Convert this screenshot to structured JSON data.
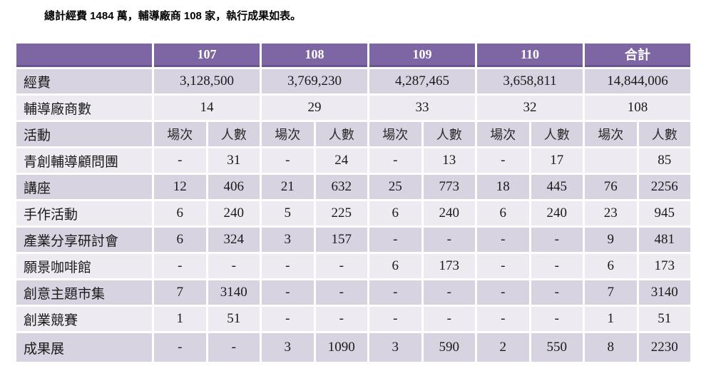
{
  "caption": "總計經費 1484 萬，輔導廠商 108 家，執行成果如表。",
  "colors": {
    "header_bg": "#7d66a3",
    "header_border": "#6a5590",
    "header_text": "#ffffff",
    "band_dark": "#d8d3e0",
    "band_light": "#edeaf1",
    "body_text": "#1a1a1a",
    "page_bg": "#ffffff"
  },
  "table": {
    "corner_label": "",
    "year_headers": [
      "107",
      "108",
      "109",
      "110",
      "合計"
    ],
    "sub_headers": [
      "場次",
      "人數"
    ],
    "span_rows": [
      {
        "label": "經費",
        "values": [
          "3,128,500",
          "3,769,230",
          "4,287,465",
          "3,658,811",
          "14,844,006"
        ]
      },
      {
        "label": "輔導廠商數",
        "values": [
          "14",
          "29",
          "33",
          "32",
          "108"
        ]
      }
    ],
    "activity_header_label": "活動",
    "activity_rows": [
      {
        "label": "青創輔導顧問團",
        "values": [
          "-",
          "31",
          "-",
          "24",
          "-",
          "13",
          "-",
          "17",
          "",
          "85"
        ]
      },
      {
        "label": "講座",
        "values": [
          "12",
          "406",
          "21",
          "632",
          "25",
          "773",
          "18",
          "445",
          "76",
          "2256"
        ]
      },
      {
        "label": "手作活動",
        "values": [
          "6",
          "240",
          "5",
          "225",
          "6",
          "240",
          "6",
          "240",
          "23",
          "945"
        ]
      },
      {
        "label": "產業分享研討會",
        "values": [
          "6",
          "324",
          "3",
          "157",
          "-",
          "-",
          "-",
          "-",
          "9",
          "481"
        ]
      },
      {
        "label": "願景咖啡館",
        "values": [
          "-",
          "-",
          "-",
          "-",
          "6",
          "173",
          "-",
          "-",
          "6",
          "173"
        ]
      },
      {
        "label": "創意主題市集",
        "values": [
          "7",
          "3140",
          "-",
          "-",
          "-",
          "-",
          "-",
          "-",
          "7",
          "3140"
        ]
      },
      {
        "label": "創業競賽",
        "values": [
          "1",
          "51",
          "-",
          "-",
          "-",
          "-",
          "-",
          "-",
          "1",
          "51"
        ]
      },
      {
        "label": "成果展",
        "values": [
          "-",
          "-",
          "3",
          "1090",
          "3",
          "590",
          "2",
          "550",
          "8",
          "2230"
        ]
      }
    ]
  }
}
